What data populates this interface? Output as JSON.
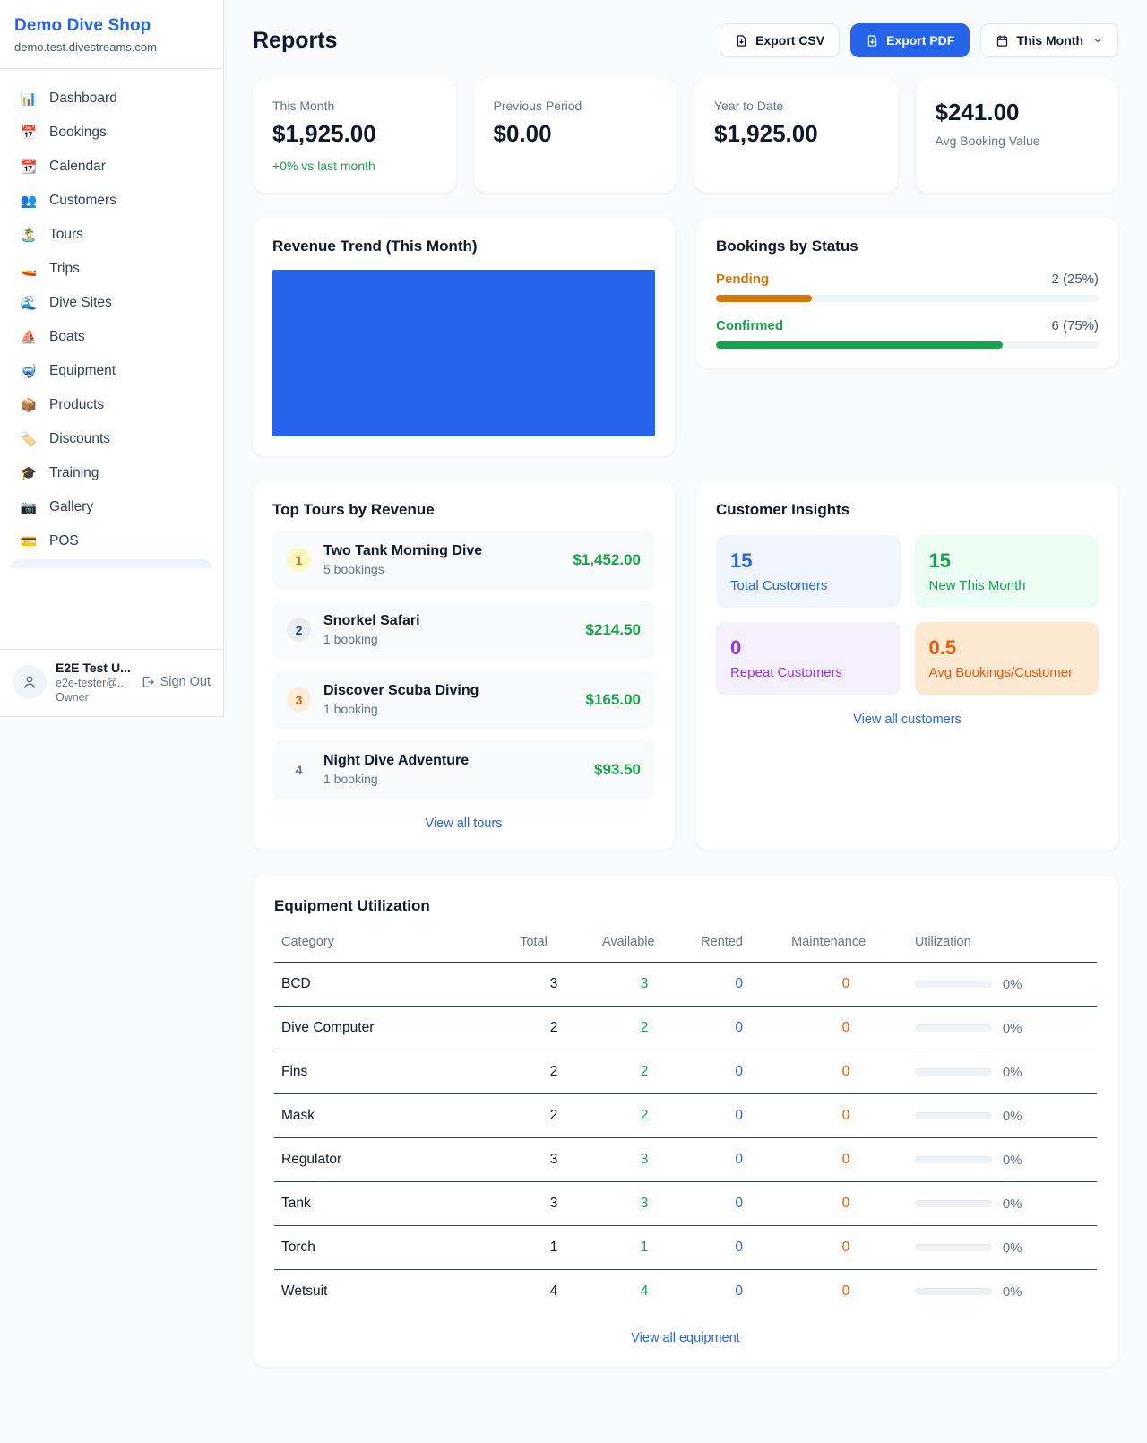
{
  "sidebar": {
    "brand": {
      "name": "Demo Dive Shop",
      "domain": "demo.test.divestreams.com"
    },
    "nav": [
      {
        "icon": "📊",
        "label": "Dashboard"
      },
      {
        "icon": "📅",
        "label": "Bookings"
      },
      {
        "icon": "📆",
        "label": "Calendar"
      },
      {
        "icon": "👥",
        "label": "Customers"
      },
      {
        "icon": "🏝️",
        "label": "Tours"
      },
      {
        "icon": "🚤",
        "label": "Trips"
      },
      {
        "icon": "🌊",
        "label": "Dive Sites"
      },
      {
        "icon": "⛵",
        "label": "Boats"
      },
      {
        "icon": "🤿",
        "label": "Equipment"
      },
      {
        "icon": "📦",
        "label": "Products"
      },
      {
        "icon": "🏷️",
        "label": "Discounts"
      },
      {
        "icon": "🎓",
        "label": "Training"
      },
      {
        "icon": "📷",
        "label": "Gallery"
      },
      {
        "icon": "💳",
        "label": "POS"
      }
    ],
    "user": {
      "name": "E2E Test U...",
      "email": "e2e-tester@...",
      "role": "Owner",
      "signout_label": "Sign Out"
    }
  },
  "header": {
    "title": "Reports",
    "export_csv_label": "Export CSV",
    "export_pdf_label": "Export PDF",
    "period_label": "This Month"
  },
  "stats": [
    {
      "label": "This Month",
      "value": "$1,925.00",
      "delta": "+0% vs last month"
    },
    {
      "label": "Previous Period",
      "value": "$0.00"
    },
    {
      "label": "Year to Date",
      "value": "$1,925.00"
    },
    {
      "label": "Avg Booking Value",
      "value": "$241.00"
    }
  ],
  "revenue_trend": {
    "title": "Revenue Trend (This Month)",
    "bar_color": "#2563eb"
  },
  "chart_data": [
    {
      "type": "bar",
      "title": "Revenue Trend (This Month)",
      "categories": [
        "This Month"
      ],
      "values": [
        1925.0
      ],
      "note": "single full-width solid blue bar, no axes or labels visible",
      "bar_color": "#2563eb"
    },
    {
      "type": "bar",
      "title": "Bookings by Status",
      "categories": [
        "Pending",
        "Confirmed"
      ],
      "values": [
        2,
        6
      ],
      "percentages": [
        25,
        75
      ]
    }
  ],
  "bookings_status": {
    "title": "Bookings by Status",
    "rows": [
      {
        "label": "Pending",
        "value": "2 (25%)",
        "pct": 25,
        "color": "#d97706"
      },
      {
        "label": "Confirmed",
        "value": "6 (75%)",
        "pct": 75,
        "color": "#16a34a"
      }
    ]
  },
  "top_tours": {
    "title": "Top Tours by Revenue",
    "items": [
      {
        "rank": "1",
        "name": "Two Tank Morning Dive",
        "sub": "5 bookings",
        "amount": "$1,452.00"
      },
      {
        "rank": "2",
        "name": "Snorkel Safari",
        "sub": "1 booking",
        "amount": "$214.50"
      },
      {
        "rank": "3",
        "name": "Discover Scuba Diving",
        "sub": "1 booking",
        "amount": "$165.00"
      },
      {
        "rank": "4",
        "name": "Night Dive Adventure",
        "sub": "1 booking",
        "amount": "$93.50"
      }
    ],
    "link": "View all tours"
  },
  "customer_insights": {
    "title": "Customer Insights",
    "tiles": [
      {
        "num": "15",
        "label": "Total Customers",
        "accent": "#2563eb"
      },
      {
        "num": "15",
        "label": "New This Month",
        "accent": "#16a34a"
      },
      {
        "num": "0",
        "label": "Repeat Customers",
        "accent": "#9333ea"
      },
      {
        "num": "0.5",
        "label": "Avg Bookings/Customer",
        "accent": "#ea580c"
      }
    ],
    "link": "View all customers"
  },
  "equipment": {
    "title": "Equipment Utilization",
    "columns": [
      "Category",
      "Total",
      "Available",
      "Rented",
      "Maintenance",
      "Utilization"
    ],
    "rows": [
      {
        "name": "BCD",
        "total": "3",
        "available": "3",
        "rented": "0",
        "maintenance": "0",
        "utilization": "0%"
      },
      {
        "name": "Dive Computer",
        "total": "2",
        "available": "2",
        "rented": "0",
        "maintenance": "0",
        "utilization": "0%"
      },
      {
        "name": "Fins",
        "total": "2",
        "available": "2",
        "rented": "0",
        "maintenance": "0",
        "utilization": "0%"
      },
      {
        "name": "Mask",
        "total": "2",
        "available": "2",
        "rented": "0",
        "maintenance": "0",
        "utilization": "0%"
      },
      {
        "name": "Regulator",
        "total": "3",
        "available": "3",
        "rented": "0",
        "maintenance": "0",
        "utilization": "0%"
      },
      {
        "name": "Tank",
        "total": "3",
        "available": "3",
        "rented": "0",
        "maintenance": "0",
        "utilization": "0%"
      },
      {
        "name": "Torch",
        "total": "1",
        "available": "1",
        "rented": "0",
        "maintenance": "0",
        "utilization": "0%"
      },
      {
        "name": "Wetsuit",
        "total": "4",
        "available": "4",
        "rented": "0",
        "maintenance": "0",
        "utilization": "0%"
      }
    ],
    "link": "View all equipment"
  }
}
